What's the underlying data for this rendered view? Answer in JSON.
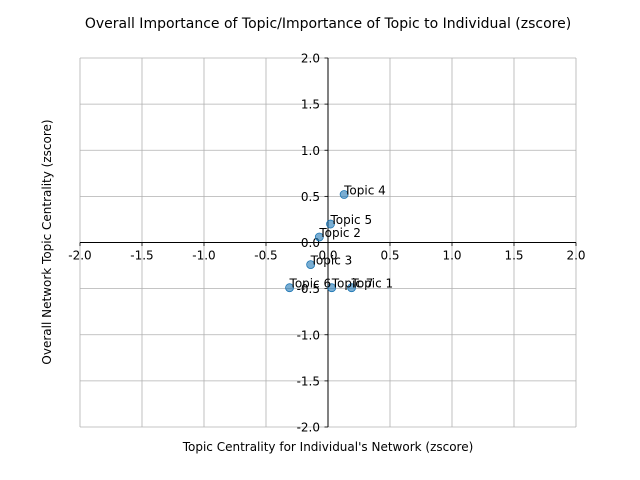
{
  "chart_data": {
    "type": "scatter",
    "title": "Overall Importance of Topic/Importance of Topic to Individual (zscore)",
    "xlabel": "Topic Centrality for Individual's Network (zscore)",
    "ylabel": "Overall Network Topic Centrality (zscore)",
    "xlim": [
      -2.0,
      2.0
    ],
    "ylim": [
      -2.0,
      2.0
    ],
    "xticks": [
      "-2.0",
      "-1.5",
      "-1.0",
      "-0.5",
      "0.0",
      "0.5",
      "1.0",
      "1.5",
      "2.0"
    ],
    "yticks": [
      "-2.0",
      "-1.5",
      "-1.0",
      "-0.5",
      "0.0",
      "0.5",
      "1.0",
      "1.5",
      "2.0"
    ],
    "grid": true,
    "axes_through_origin": true,
    "point_color": "#1f77b4",
    "points": [
      {
        "label": "Topic 4",
        "x": 0.13,
        "y": 0.52
      },
      {
        "label": "Topic 5",
        "x": 0.02,
        "y": 0.2
      },
      {
        "label": "Topic 2",
        "x": -0.07,
        "y": 0.06
      },
      {
        "label": "Topic 3",
        "x": -0.14,
        "y": -0.24
      },
      {
        "label": "Topic 6",
        "x": -0.31,
        "y": -0.49
      },
      {
        "label": "Topic 7",
        "x": 0.03,
        "y": -0.49
      },
      {
        "label": "Topic 1",
        "x": 0.19,
        "y": -0.49
      }
    ]
  }
}
